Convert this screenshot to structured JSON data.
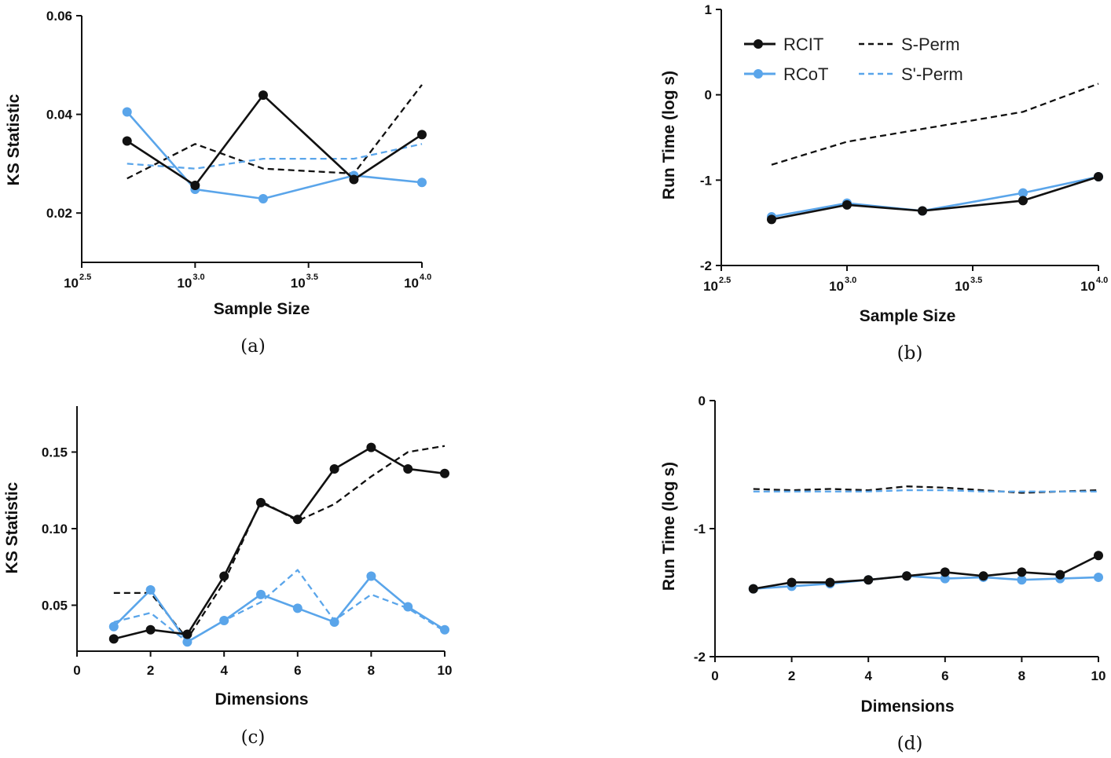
{
  "colors": {
    "black": "#111111",
    "blue": "#5aa5ea"
  },
  "legend": {
    "rcit": "RCIT",
    "rcot": "RCoT",
    "sperm": "S-Perm",
    "sprimeperm": "S'-Perm"
  },
  "chart_data": [
    {
      "id": "a",
      "type": "line",
      "caption": "(a)",
      "xlabel": "Sample Size",
      "ylabel": "KS Statistic",
      "xscale": "log10",
      "xlim": [
        2.5,
        4.0
      ],
      "ylim": [
        0.01,
        0.06
      ],
      "xticks": [
        {
          "base": "10",
          "exp": "2.5",
          "value": 2.5
        },
        {
          "base": "10",
          "exp": "3.0",
          "value": 3.0
        },
        {
          "base": "10",
          "exp": "3.5",
          "value": 3.5
        },
        {
          "base": "10",
          "exp": "4.0",
          "value": 4.0
        }
      ],
      "yticks": [
        {
          "label": "0.02",
          "value": 0.02
        },
        {
          "label": "0.04",
          "value": 0.04
        },
        {
          "label": "0.06",
          "value": 0.06
        }
      ],
      "x": [
        2.7,
        3.0,
        3.3,
        3.7,
        4.0
      ],
      "series": [
        {
          "name": "S-Perm",
          "key": "sperm",
          "dashed": true,
          "color": "#111111",
          "values": [
            0.027,
            0.034,
            0.029,
            0.028,
            0.046
          ]
        },
        {
          "name": "S'-Perm",
          "key": "sprimeperm",
          "dashed": true,
          "color": "#5aa5ea",
          "values": [
            0.03,
            0.029,
            0.031,
            0.031,
            0.034
          ]
        },
        {
          "name": "RCoT",
          "key": "rcot",
          "dashed": false,
          "markers": true,
          "color": "#5aa5ea",
          "values": [
            0.0405,
            0.0248,
            0.0229,
            0.0276,
            0.0262
          ]
        },
        {
          "name": "RCIT",
          "key": "rcit",
          "dashed": false,
          "markers": true,
          "color": "#111111",
          "values": [
            0.0346,
            0.0256,
            0.0439,
            0.0268,
            0.0359
          ]
        }
      ]
    },
    {
      "id": "b",
      "type": "line",
      "caption": "(b)",
      "xlabel": "Sample Size",
      "ylabel": "Run Time (log s)",
      "xscale": "log10",
      "xlim": [
        2.5,
        4.0
      ],
      "ylim": [
        -2,
        1
      ],
      "xticks": [
        {
          "base": "10",
          "exp": "2.5",
          "value": 2.5
        },
        {
          "base": "10",
          "exp": "3.0",
          "value": 3.0
        },
        {
          "base": "10",
          "exp": "3.5",
          "value": 3.5
        },
        {
          "base": "10",
          "exp": "4.0",
          "value": 4.0
        }
      ],
      "yticks": [
        {
          "label": "-2",
          "value": -2
        },
        {
          "label": "-1",
          "value": -1
        },
        {
          "label": "0",
          "value": 0
        },
        {
          "label": "1",
          "value": 1
        }
      ],
      "x": [
        2.7,
        3.0,
        3.3,
        3.7,
        4.0
      ],
      "series": [
        {
          "name": "S-Perm",
          "key": "sperm",
          "dashed": true,
          "color": "#111111",
          "values": [
            -0.82,
            -0.55,
            -0.4,
            -0.2,
            0.13
          ]
        },
        {
          "name": "RCoT",
          "key": "rcot",
          "dashed": false,
          "markers": true,
          "color": "#5aa5ea",
          "values": [
            -1.43,
            -1.27,
            -1.36,
            -1.15,
            -0.96
          ]
        },
        {
          "name": "RCIT",
          "key": "rcit",
          "dashed": false,
          "markers": true,
          "color": "#111111",
          "values": [
            -1.46,
            -1.29,
            -1.36,
            -1.24,
            -0.96
          ]
        }
      ]
    },
    {
      "id": "c",
      "type": "line",
      "caption": "(c)",
      "xlabel": "Dimensions",
      "ylabel": "KS Statistic",
      "xlim": [
        0,
        10
      ],
      "ylim": [
        0.02,
        0.18
      ],
      "xticks": [
        {
          "label": "0",
          "value": 0
        },
        {
          "label": "2",
          "value": 2
        },
        {
          "label": "4",
          "value": 4
        },
        {
          "label": "6",
          "value": 6
        },
        {
          "label": "8",
          "value": 8
        },
        {
          "label": "10",
          "value": 10
        }
      ],
      "yticks": [
        {
          "label": "0.05",
          "value": 0.05
        },
        {
          "label": "0.10",
          "value": 0.1
        },
        {
          "label": "0.15",
          "value": 0.15
        }
      ],
      "x": [
        1,
        2,
        3,
        4,
        5,
        6,
        7,
        8,
        9,
        10
      ],
      "series": [
        {
          "name": "S-Perm",
          "key": "sperm",
          "dashed": true,
          "color": "#111111",
          "values": [
            0.058,
            0.058,
            0.028,
            0.065,
            0.118,
            0.105,
            0.116,
            0.134,
            0.15,
            0.154
          ]
        },
        {
          "name": "S'-Perm",
          "key": "sprimeperm",
          "dashed": true,
          "color": "#5aa5ea",
          "values": [
            0.039,
            0.045,
            0.026,
            0.04,
            0.052,
            0.073,
            0.04,
            0.057,
            0.048,
            0.033
          ]
        },
        {
          "name": "RCoT",
          "key": "rcot",
          "dashed": false,
          "markers": true,
          "color": "#5aa5ea",
          "values": [
            0.036,
            0.06,
            0.026,
            0.04,
            0.057,
            0.048,
            0.039,
            0.069,
            0.049,
            0.034
          ]
        },
        {
          "name": "RCIT",
          "key": "rcit",
          "dashed": false,
          "markers": true,
          "color": "#111111",
          "values": [
            0.028,
            0.034,
            0.031,
            0.069,
            0.117,
            0.106,
            0.139,
            0.153,
            0.139,
            0.136
          ]
        }
      ]
    },
    {
      "id": "d",
      "type": "line",
      "caption": "(d)",
      "xlabel": "Dimensions",
      "ylabel": "Run Time (log s)",
      "xlim": [
        0,
        10
      ],
      "ylim": [
        -2,
        0
      ],
      "xticks": [
        {
          "label": "0",
          "value": 0
        },
        {
          "label": "2",
          "value": 2
        },
        {
          "label": "4",
          "value": 4
        },
        {
          "label": "6",
          "value": 6
        },
        {
          "label": "8",
          "value": 8
        },
        {
          "label": "10",
          "value": 10
        }
      ],
      "yticks": [
        {
          "label": "-2",
          "value": -2
        },
        {
          "label": "-1",
          "value": -1
        },
        {
          "label": "0",
          "value": 0
        }
      ],
      "x": [
        1,
        2,
        3,
        4,
        5,
        6,
        7,
        8,
        9,
        10
      ],
      "series": [
        {
          "name": "S-Perm",
          "key": "sperm",
          "dashed": true,
          "color": "#111111",
          "values": [
            -0.69,
            -0.7,
            -0.69,
            -0.7,
            -0.67,
            -0.68,
            -0.7,
            -0.72,
            -0.71,
            -0.7
          ]
        },
        {
          "name": "S'-Perm",
          "key": "sprimeperm",
          "dashed": true,
          "color": "#5aa5ea",
          "values": [
            -0.71,
            -0.71,
            -0.71,
            -0.71,
            -0.7,
            -0.7,
            -0.71,
            -0.71,
            -0.71,
            -0.71
          ]
        },
        {
          "name": "RCoT",
          "key": "rcot",
          "dashed": false,
          "markers": true,
          "color": "#5aa5ea",
          "values": [
            -1.47,
            -1.45,
            -1.43,
            -1.4,
            -1.37,
            -1.39,
            -1.38,
            -1.4,
            -1.39,
            -1.38
          ]
        },
        {
          "name": "RCIT",
          "key": "rcit",
          "dashed": false,
          "markers": true,
          "color": "#111111",
          "values": [
            -1.47,
            -1.42,
            -1.42,
            -1.4,
            -1.37,
            -1.34,
            -1.37,
            -1.34,
            -1.36,
            -1.21
          ]
        }
      ]
    }
  ]
}
